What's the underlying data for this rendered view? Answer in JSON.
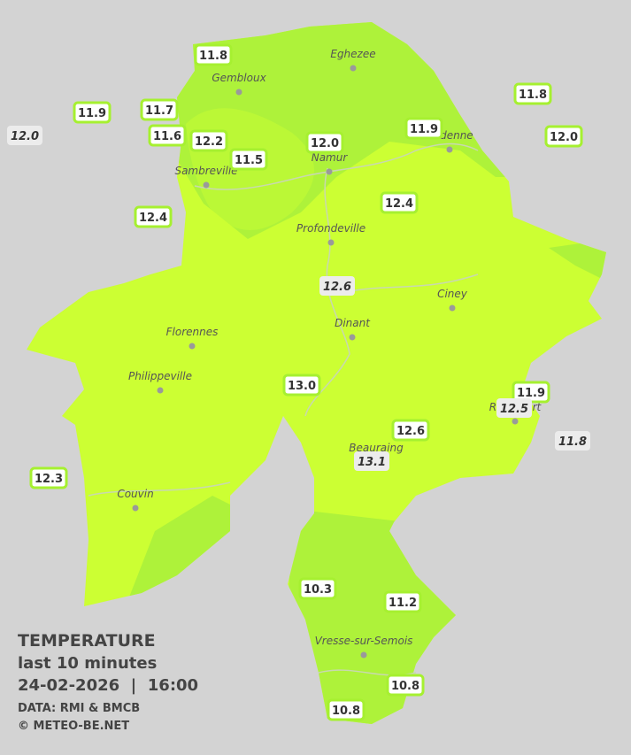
{
  "cities": [
    "Eghezee",
    "Gembloux",
    "Andenne",
    "Namur",
    "Sambreville",
    "Profondeville",
    "Ciney",
    "Dinant",
    "Florennes",
    "Philippeville",
    "Rochefort",
    "Beauraing",
    "Couvin",
    "Vresse-sur-Semois"
  ],
  "stations": [
    {
      "text": "11.8",
      "italic": false
    },
    {
      "text": "11.9",
      "italic": false
    },
    {
      "text": "11.7",
      "italic": false
    },
    {
      "text": "12.0",
      "italic": true
    },
    {
      "text": "11.6",
      "italic": false
    },
    {
      "text": "12.2",
      "italic": false
    },
    {
      "text": "11.5",
      "italic": false
    },
    {
      "text": "12.0",
      "italic": false
    },
    {
      "text": "11.9",
      "italic": false
    },
    {
      "text": "11.8",
      "italic": false
    },
    {
      "text": "12.0",
      "italic": false
    },
    {
      "text": "12.4",
      "italic": false
    },
    {
      "text": "12.4",
      "italic": false
    },
    {
      "text": "12.6",
      "italic": true
    },
    {
      "text": "13.0",
      "italic": false
    },
    {
      "text": "11.9",
      "italic": false
    },
    {
      "text": "12.5",
      "italic": true
    },
    {
      "text": "11.8",
      "italic": true
    },
    {
      "text": "12.6",
      "italic": false
    },
    {
      "text": "13.1",
      "italic": true
    },
    {
      "text": "12.3",
      "italic": false
    },
    {
      "text": "10.3",
      "italic": false
    },
    {
      "text": "11.2",
      "italic": false
    },
    {
      "text": "10.8",
      "italic": false
    },
    {
      "text": "10.8",
      "italic": false
    }
  ],
  "legend": {
    "title": "TEMPERATURE",
    "period": "last 10 minutes",
    "datetime": "24-02-2026  |  16:00",
    "source": "DATA: RMI & BMCB",
    "credit": "© METEO-BE.NET"
  }
}
